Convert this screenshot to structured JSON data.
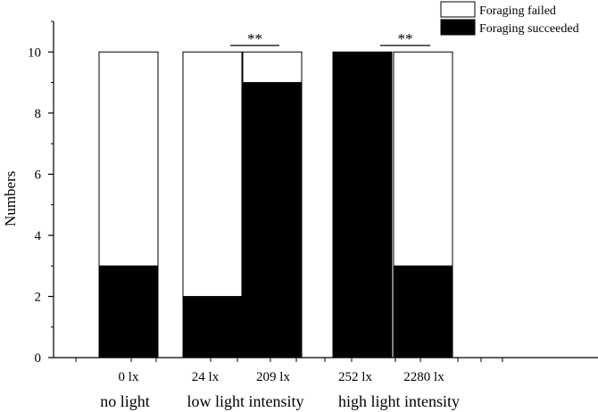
{
  "chart_data": {
    "type": "bar",
    "stacked": true,
    "ylabel": "Numbers",
    "ylim": [
      0,
      11
    ],
    "y_ticks": [
      "0",
      "2",
      "4",
      "6",
      "8",
      "10"
    ],
    "y_tick_values": [
      0,
      2,
      4,
      6,
      8,
      10
    ],
    "categories": [
      "0 lx",
      "24 lx",
      "209 lx",
      "252 lx",
      "2280 lx"
    ],
    "groups": [
      {
        "label": "no light",
        "members": [
          "0 lx"
        ]
      },
      {
        "label": "low light intensity",
        "members": [
          "24 lx",
          "209 lx"
        ]
      },
      {
        "label": "high light intensity",
        "members": [
          "252 lx",
          "2280 lx"
        ]
      }
    ],
    "series": [
      {
        "name": "Foraging succeeded",
        "values": [
          3,
          2,
          9,
          10,
          3
        ],
        "color": "#000000"
      },
      {
        "name": "Foraging failed",
        "values": [
          7,
          8,
          1,
          0,
          7
        ],
        "color": "#ffffff"
      }
    ],
    "legend": {
      "placement": "top-right",
      "items": [
        {
          "label": "Foraging failed",
          "color": "#ffffff"
        },
        {
          "label": "Foraging succeeded",
          "color": "#000000"
        }
      ]
    },
    "significance": [
      {
        "between": [
          "24 lx",
          "209 lx"
        ],
        "label": "**"
      },
      {
        "between": [
          "252 lx",
          "2280 lx"
        ],
        "label": "**"
      }
    ],
    "grid": false
  }
}
